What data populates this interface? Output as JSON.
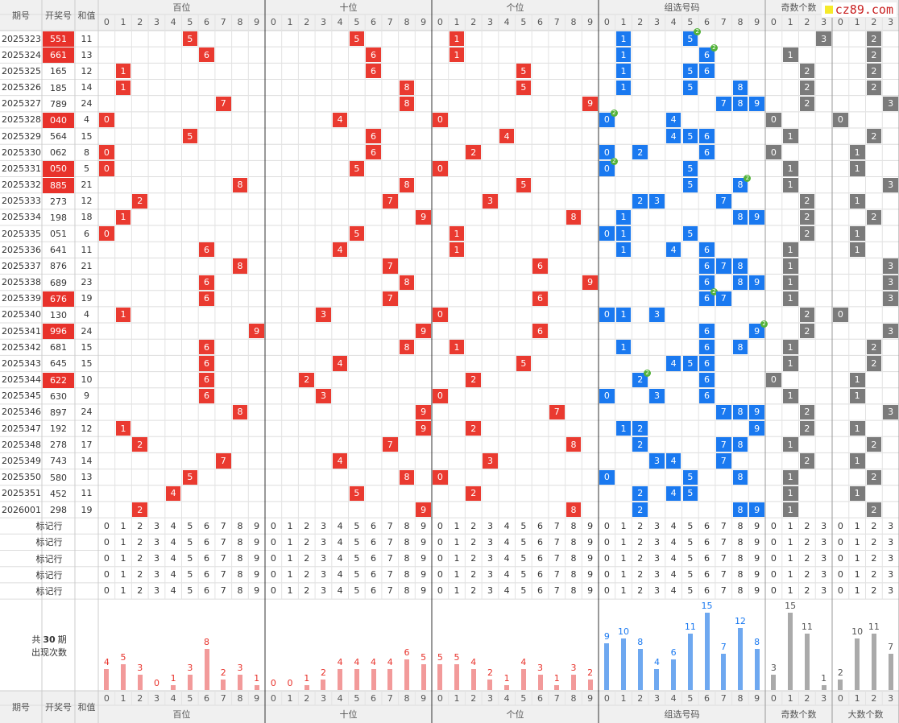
{
  "logo": "cz89.com",
  "headers": {
    "period": "期号",
    "draw": "开奖号",
    "sum": "和值",
    "groups": [
      "百位",
      "十位",
      "个位",
      "组选号码",
      "奇数个数",
      "大数个数"
    ]
  },
  "mark_row_label": "标记行",
  "stats_label_line1": "共",
  "stats_period_count": "30",
  "stats_label_line1_suffix": "期",
  "stats_label_line2": "出现次数",
  "rows": [
    {
      "period": "2025323",
      "draw": "551",
      "sum": "11",
      "hl": true,
      "combo": [
        [
          1
        ],
        [
          5,
          2
        ]
      ],
      "odd": 3,
      "big": 2
    },
    {
      "period": "2025324",
      "draw": "661",
      "sum": "13",
      "hl": true,
      "combo": [
        [
          1
        ],
        [
          6,
          2
        ]
      ],
      "odd": 1,
      "big": 2
    },
    {
      "period": "2025325",
      "draw": "165",
      "sum": "12",
      "hl": false,
      "combo": [
        [
          1
        ],
        [
          5
        ],
        [
          6
        ]
      ],
      "odd": 2,
      "big": 2
    },
    {
      "period": "2025326",
      "draw": "185",
      "sum": "14",
      "hl": false,
      "combo": [
        [
          1
        ],
        [
          5
        ],
        [
          8
        ]
      ],
      "odd": 2,
      "big": 2
    },
    {
      "period": "2025327",
      "draw": "789",
      "sum": "24",
      "hl": false,
      "combo": [
        [
          7
        ],
        [
          8
        ],
        [
          9
        ]
      ],
      "odd": 2,
      "big": 3
    },
    {
      "period": "2025328",
      "draw": "040",
      "sum": "4",
      "hl": true,
      "combo": [
        [
          0,
          2
        ],
        [
          4
        ]
      ],
      "odd": 0,
      "big": 0
    },
    {
      "period": "2025329",
      "draw": "564",
      "sum": "15",
      "hl": false,
      "combo": [
        [
          4
        ],
        [
          5
        ],
        [
          6
        ]
      ],
      "odd": 1,
      "big": 2
    },
    {
      "period": "2025330",
      "draw": "062",
      "sum": "8",
      "hl": false,
      "combo": [
        [
          0
        ],
        [
          2
        ],
        [
          6
        ]
      ],
      "odd": 0,
      "big": 1
    },
    {
      "period": "2025331",
      "draw": "050",
      "sum": "5",
      "hl": true,
      "combo": [
        [
          0,
          2
        ],
        [
          5
        ]
      ],
      "odd": 1,
      "big": 1
    },
    {
      "period": "2025332",
      "draw": "885",
      "sum": "21",
      "hl": true,
      "combo": [
        [
          5
        ],
        [
          8,
          2
        ]
      ],
      "odd": 1,
      "big": 3
    },
    {
      "period": "2025333",
      "draw": "273",
      "sum": "12",
      "hl": false,
      "combo": [
        [
          2
        ],
        [
          3
        ],
        [
          7
        ]
      ],
      "odd": 2,
      "big": 1
    },
    {
      "period": "2025334",
      "draw": "198",
      "sum": "18",
      "hl": false,
      "combo": [
        [
          1
        ],
        [
          8
        ],
        [
          9
        ]
      ],
      "odd": 2,
      "big": 2
    },
    {
      "period": "2025335",
      "draw": "051",
      "sum": "6",
      "hl": false,
      "combo": [
        [
          0
        ],
        [
          1
        ],
        [
          5
        ]
      ],
      "odd": 2,
      "big": 1
    },
    {
      "period": "2025336",
      "draw": "641",
      "sum": "11",
      "hl": false,
      "combo": [
        [
          1
        ],
        [
          4
        ],
        [
          6
        ]
      ],
      "odd": 1,
      "big": 1
    },
    {
      "period": "2025337",
      "draw": "876",
      "sum": "21",
      "hl": false,
      "combo": [
        [
          6
        ],
        [
          7
        ],
        [
          8
        ]
      ],
      "odd": 1,
      "big": 3
    },
    {
      "period": "2025338",
      "draw": "689",
      "sum": "23",
      "hl": false,
      "combo": [
        [
          6
        ],
        [
          8
        ],
        [
          9
        ]
      ],
      "odd": 1,
      "big": 3
    },
    {
      "period": "2025339",
      "draw": "676",
      "sum": "19",
      "hl": true,
      "combo": [
        [
          6,
          2
        ],
        [
          7
        ]
      ],
      "odd": 1,
      "big": 3
    },
    {
      "period": "2025340",
      "draw": "130",
      "sum": "4",
      "hl": false,
      "combo": [
        [
          0
        ],
        [
          1
        ],
        [
          3
        ]
      ],
      "odd": 2,
      "big": 0
    },
    {
      "period": "2025341",
      "draw": "996",
      "sum": "24",
      "hl": true,
      "combo": [
        [
          6
        ],
        [
          9,
          2
        ]
      ],
      "odd": 2,
      "big": 3
    },
    {
      "period": "2025342",
      "draw": "681",
      "sum": "15",
      "hl": false,
      "combo": [
        [
          1
        ],
        [
          6
        ],
        [
          8
        ]
      ],
      "odd": 1,
      "big": 2
    },
    {
      "period": "2025343",
      "draw": "645",
      "sum": "15",
      "hl": false,
      "combo": [
        [
          4
        ],
        [
          5
        ],
        [
          6
        ]
      ],
      "odd": 1,
      "big": 2
    },
    {
      "period": "2025344",
      "draw": "622",
      "sum": "10",
      "hl": true,
      "combo": [
        [
          2,
          2
        ],
        [
          6
        ]
      ],
      "odd": 0,
      "big": 1
    },
    {
      "period": "2025345",
      "draw": "630",
      "sum": "9",
      "hl": false,
      "combo": [
        [
          0
        ],
        [
          3
        ],
        [
          6
        ]
      ],
      "odd": 1,
      "big": 1
    },
    {
      "period": "2025346",
      "draw": "897",
      "sum": "24",
      "hl": false,
      "combo": [
        [
          7
        ],
        [
          8
        ],
        [
          9
        ]
      ],
      "odd": 2,
      "big": 3
    },
    {
      "period": "2025347",
      "draw": "192",
      "sum": "12",
      "hl": false,
      "combo": [
        [
          1
        ],
        [
          2
        ],
        [
          9
        ]
      ],
      "odd": 2,
      "big": 1
    },
    {
      "period": "2025348",
      "draw": "278",
      "sum": "17",
      "hl": false,
      "combo": [
        [
          2
        ],
        [
          7
        ],
        [
          8
        ]
      ],
      "odd": 1,
      "big": 2
    },
    {
      "period": "2025349",
      "draw": "743",
      "sum": "14",
      "hl": false,
      "combo": [
        [
          3
        ],
        [
          4
        ],
        [
          7
        ]
      ],
      "odd": 2,
      "big": 1
    },
    {
      "period": "2025350",
      "draw": "580",
      "sum": "13",
      "hl": false,
      "combo": [
        [
          0
        ],
        [
          5
        ],
        [
          8
        ]
      ],
      "odd": 1,
      "big": 2
    },
    {
      "period": "2025351",
      "draw": "452",
      "sum": "11",
      "hl": false,
      "combo": [
        [
          2
        ],
        [
          4
        ],
        [
          5
        ]
      ],
      "odd": 1,
      "big": 1
    },
    {
      "period": "2026001",
      "draw": "298",
      "sum": "19",
      "hl": false,
      "combo": [
        [
          2
        ],
        [
          8
        ],
        [
          9
        ]
      ],
      "odd": 1,
      "big": 2
    }
  ],
  "chart_data": {
    "type": "bar",
    "categories": [
      "0",
      "1",
      "2",
      "3",
      "4",
      "5",
      "6",
      "7",
      "8",
      "9"
    ],
    "groups": [
      {
        "name": "百位",
        "color": "#f29a9a",
        "label_color": "#e8322b",
        "values": [
          4,
          5,
          3,
          0,
          1,
          3,
          8,
          2,
          3,
          1
        ]
      },
      {
        "name": "十位",
        "color": "#f29a9a",
        "label_color": "#e8322b",
        "values": [
          0,
          0,
          1,
          2,
          4,
          4,
          4,
          4,
          6,
          5
        ]
      },
      {
        "name": "个位",
        "color": "#f29a9a",
        "label_color": "#e8322b",
        "values": [
          5,
          5,
          4,
          2,
          1,
          4,
          3,
          1,
          3,
          2
        ]
      },
      {
        "name": "组选号码",
        "color": "#6ea8f0",
        "label_color": "#1a79f0",
        "values": [
          9,
          10,
          8,
          4,
          6,
          11,
          15,
          7,
          12,
          8
        ]
      },
      {
        "name": "奇数个数",
        "color": "#aaaaaa",
        "label_color": "#555555",
        "categories": [
          "0",
          "1",
          "2",
          "3"
        ],
        "values": [
          3,
          15,
          11,
          1
        ]
      },
      {
        "name": "大数个数",
        "color": "#aaaaaa",
        "label_color": "#555555",
        "categories": [
          "0",
          "1",
          "2",
          "3"
        ],
        "values": [
          2,
          10,
          11,
          7
        ]
      }
    ]
  }
}
